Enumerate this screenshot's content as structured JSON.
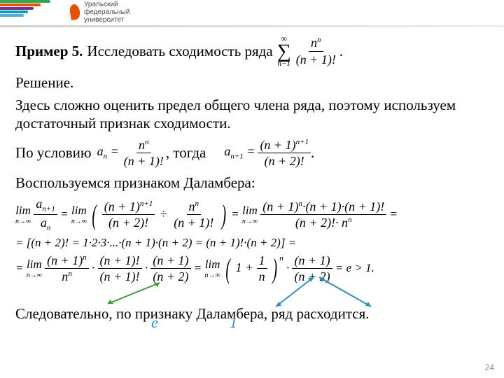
{
  "header": {
    "university_line1": "Уральский",
    "university_line2": "федеральный",
    "university_line3": "университет",
    "stripe_colors": [
      "#2fa84f",
      "#e35205",
      "#7b2d8e",
      "#00a0c3",
      "#5aa9d6"
    ],
    "stripe_widths": [
      72,
      58,
      48,
      40,
      34
    ],
    "rule_gradient_from": "#cfcfcf",
    "rule_gradient_to": "#efefef",
    "logo_color": "#e35205"
  },
  "content": {
    "example_label": "Пример 5.",
    "task_text": "Исследовать сходимость ряда",
    "series": {
      "top": "∞",
      "bottom": "n−1",
      "num": "n",
      "num_sup": "n",
      "den": "(n + 1)!",
      "trail": "."
    },
    "solution_label": "Решение.",
    "para1": "Здесь сложно оценить предел общего члена ряда, поэтому используем достаточный признак сходимости.",
    "cond_text": "По условию",
    "cond_then": ", тогда",
    "a_n": {
      "lhs": "a",
      "lhs_sub": "n",
      "num": "n",
      "num_sup": "n",
      "den": "(n + 1)!"
    },
    "a_n1": {
      "lhs": "a",
      "lhs_sub": "n+1",
      "num": "(n + 1)",
      "num_sup": "n+1",
      "den": "(n + 2)!",
      "trail": "."
    },
    "dalembert_label": "Воспользуемся признаком Даламбера:",
    "eq_line1": {
      "lim_label": "lim",
      "lim_under": "n→∞",
      "ratio_num": "a",
      "ratio_num_sub": "n+1",
      "ratio_den": "a",
      "ratio_den_sub": "n",
      "t1_num": "(n + 1)",
      "t1_sup": "n+1",
      "t1_den": "(n + 2)!",
      "div": "÷",
      "t2_num": "n",
      "t2_sup": "n",
      "t2_den": "(n + 1)!",
      "t3_num": "(n + 1)",
      "t3_sup": "n",
      "t3_mid": "·(n + 1)·(n + 1)!",
      "t3_den": "(n + 2)!· n",
      "t3_den_sup": "n",
      "eq": " ="
    },
    "eq_line2": "= [(n + 2)! = 1·2·3·...·(n + 1)·(n + 2) = (n + 1)!·(n + 2)] =",
    "eq_line3": {
      "lim_label": "lim",
      "lim_under": "n→∞",
      "p1_num": "(n + 1)",
      "p1_sup": "n",
      "p1_den": "n",
      "p1_den_sup": "n",
      "p2_num": "(n + 1)!",
      "p2_den": "(n + 1)!",
      "p3_num": "(n + 1)",
      "p3_den": "(n + 2)",
      "mid_eq": " = ",
      "inner_one": "1",
      "inner_plus": "1 +",
      "inner_frac_num": "1",
      "inner_frac_den": "n",
      "inner_sup": "n",
      "tail_num": "(n + 1)",
      "tail_den": "(n + 2)",
      "result": " = e > 1."
    },
    "annot_e": "e",
    "annot_1": "1",
    "conclusion": "Следовательно, по признаку Даламбера, ряд расходится.",
    "annot_e_color": "#2e8fbf",
    "annot_1_color": "#2e8fbf",
    "arrow_green": "#3a9a3a",
    "arrow_blue": "#2e8fbf"
  },
  "page_number": "24"
}
